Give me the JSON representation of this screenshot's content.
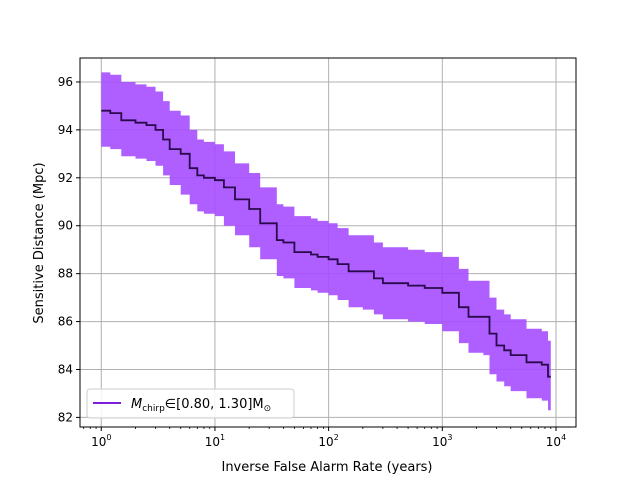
{
  "chart_data": {
    "type": "line",
    "xlabel": "Inverse False Alarm Rate (years)",
    "ylabel": "Sensitive Distance (Mpc)",
    "x_scale": "log",
    "xlim": [
      0.65,
      15000
    ],
    "ylim": [
      81.6,
      97.0
    ],
    "x_ticks": [
      {
        "value": 1,
        "base": "10",
        "exp": "0"
      },
      {
        "value": 10,
        "base": "10",
        "exp": "1"
      },
      {
        "value": 100,
        "base": "10",
        "exp": "2"
      },
      {
        "value": 1000,
        "base": "10",
        "exp": "3"
      },
      {
        "value": 10000,
        "base": "10",
        "exp": "4"
      }
    ],
    "y_ticks": [
      82,
      84,
      86,
      88,
      90,
      92,
      94,
      96
    ],
    "grid": true,
    "legend": {
      "placement": "lower-left",
      "label_main": "M",
      "label_sub": "chirp",
      "label_range": "∈[0.80, 1.30]M",
      "label_sun": "⊙"
    },
    "colors": {
      "line": "#2a0a4a",
      "band": "#a64dff",
      "legend_line": "#7a1fe0",
      "grid": "#b0b0b0"
    },
    "series": [
      {
        "x": [
          1,
          1.2,
          1.5,
          2,
          2.5,
          3,
          3.5,
          4,
          5,
          6,
          7,
          8,
          10,
          12,
          15,
          20,
          25,
          30,
          35,
          40,
          50,
          60,
          70,
          80,
          100,
          120,
          150,
          200,
          250,
          300,
          400,
          500,
          700,
          1000,
          1200,
          1400,
          1700,
          2000,
          2300,
          2600,
          3000,
          3500,
          4000,
          5000,
          5500,
          6500,
          7500,
          8500,
          9000
        ],
        "y": [
          94.8,
          94.7,
          94.4,
          94.3,
          94.2,
          94.0,
          93.6,
          93.2,
          93.0,
          92.4,
          92.1,
          92.0,
          91.9,
          91.6,
          91.1,
          90.7,
          90.1,
          90.1,
          89.4,
          89.3,
          88.9,
          88.9,
          88.8,
          88.7,
          88.6,
          88.4,
          88.1,
          88.1,
          87.8,
          87.6,
          87.6,
          87.5,
          87.4,
          87.2,
          87.2,
          86.6,
          86.2,
          86.2,
          86.2,
          85.5,
          85.0,
          84.8,
          84.6,
          84.6,
          84.3,
          84.3,
          84.2,
          83.7,
          83.7
        ],
        "lower": [
          93.3,
          93.2,
          92.9,
          92.8,
          92.7,
          92.5,
          92.1,
          91.7,
          91.3,
          90.9,
          90.6,
          90.5,
          90.4,
          90.0,
          89.6,
          89.1,
          88.6,
          88.6,
          87.9,
          87.8,
          87.4,
          87.4,
          87.3,
          87.2,
          87.1,
          86.9,
          86.6,
          86.5,
          86.3,
          86.1,
          86.1,
          86.0,
          85.9,
          85.6,
          85.6,
          85.1,
          84.7,
          84.7,
          84.6,
          83.8,
          83.5,
          83.3,
          83.1,
          83.1,
          82.8,
          82.8,
          82.7,
          82.3,
          82.3
        ],
        "upper": [
          96.4,
          96.3,
          96.0,
          95.9,
          95.8,
          95.6,
          95.2,
          94.8,
          94.6,
          94.0,
          93.6,
          93.5,
          93.4,
          93.1,
          92.6,
          92.2,
          91.6,
          91.6,
          90.9,
          90.8,
          90.4,
          90.4,
          90.3,
          90.2,
          90.1,
          89.9,
          89.6,
          89.6,
          89.3,
          89.1,
          89.1,
          89.0,
          88.9,
          88.7,
          88.7,
          88.2,
          87.7,
          87.7,
          87.7,
          87.0,
          86.5,
          86.3,
          86.1,
          86.1,
          85.7,
          85.7,
          85.6,
          85.2,
          85.2
        ]
      }
    ]
  }
}
